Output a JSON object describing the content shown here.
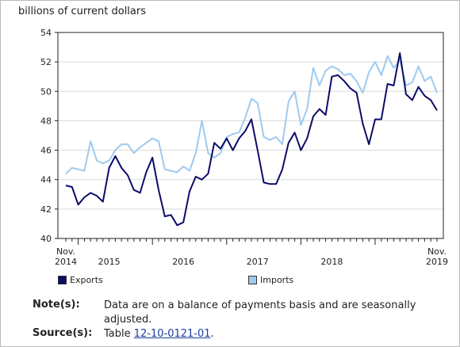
{
  "chart_data": {
    "type": "line",
    "ylabel": "billions of current dollars",
    "ylim": [
      40,
      54
    ],
    "yticks": [
      "40",
      "42",
      "44",
      "46",
      "48",
      "50",
      "52",
      "54"
    ],
    "grid": true,
    "x_start": "2014-11",
    "x_labels": [
      {
        "line1": "Nov.",
        "line2": "2014",
        "month_index": 0
      },
      {
        "line1": "",
        "line2": "2015",
        "month_index": 7
      },
      {
        "line1": "",
        "line2": "2016",
        "month_index": 19
      },
      {
        "line1": "",
        "line2": "2017",
        "month_index": 31
      },
      {
        "line1": "",
        "line2": "2018",
        "month_index": 43
      },
      {
        "line1": "Nov.",
        "line2": "2019",
        "month_index": 60
      }
    ],
    "series": [
      {
        "name": "Exports",
        "color": "#0c0c6a",
        "values": [
          43.6,
          43.5,
          42.3,
          42.8,
          43.1,
          42.9,
          42.5,
          44.8,
          45.6,
          44.8,
          44.3,
          43.3,
          43.1,
          44.5,
          45.5,
          43.3,
          41.5,
          41.6,
          40.9,
          41.1,
          43.2,
          44.2,
          44.0,
          44.4,
          46.5,
          46.1,
          46.8,
          46.0,
          46.8,
          47.3,
          48.1,
          46.0,
          43.8,
          43.7,
          43.7,
          44.7,
          46.5,
          47.2,
          46.0,
          46.8,
          48.3,
          48.8,
          48.4,
          51.0,
          51.1,
          50.7,
          50.2,
          49.9,
          47.8,
          46.4,
          48.1,
          48.1,
          50.5,
          50.4,
          52.6,
          49.8,
          49.4,
          50.3,
          49.7,
          49.4,
          48.7
        ]
      },
      {
        "name": "Imports",
        "color": "#9ecaf0",
        "values": [
          44.4,
          44.8,
          44.7,
          44.6,
          46.6,
          45.3,
          45.1,
          45.3,
          46.0,
          46.4,
          46.4,
          45.8,
          46.2,
          46.5,
          46.8,
          46.6,
          44.7,
          44.6,
          44.5,
          44.9,
          44.6,
          45.8,
          48.0,
          45.8,
          45.5,
          45.8,
          46.9,
          47.1,
          47.2,
          48.2,
          49.5,
          49.2,
          46.9,
          46.7,
          46.9,
          46.4,
          49.3,
          50.0,
          47.7,
          48.8,
          51.6,
          50.4,
          51.4,
          51.7,
          51.5,
          51.1,
          51.2,
          50.7,
          49.9,
          51.3,
          52.0,
          51.1,
          52.4,
          51.6,
          52.1,
          50.4,
          50.6,
          51.7,
          50.7,
          51.0,
          49.9
        ]
      }
    ]
  },
  "legend": {
    "exports_label": "Exports",
    "imports_label": "Imports"
  },
  "notes": {
    "note_label": "Note(s):",
    "note_text": "Data are on a balance of payments basis and are seasonally adjusted.",
    "source_label": "Source(s):",
    "source_prefix": "Table ",
    "source_link": "12-10-0121-01",
    "source_suffix": "."
  }
}
